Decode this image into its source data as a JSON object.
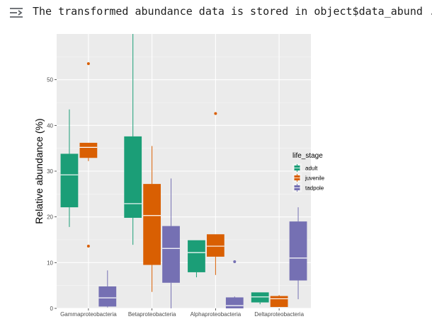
{
  "output": {
    "icon": "output-toggle-icon",
    "message": "The transformed abundance data is stored in object$data_abund ..."
  },
  "chart_data": {
    "type": "box",
    "title": "",
    "xlabel": "",
    "ylabel": "Relative abundance (%)",
    "ylim": [
      0,
      60
    ],
    "yticks": [
      0,
      10,
      20,
      30,
      40,
      50
    ],
    "grid": true,
    "legend": {
      "title": "life_stage",
      "position": "right"
    },
    "categories": [
      "Gammaproteobacteria",
      "Betaproteobacteria",
      "Alphaproteobacteria",
      "Deltaproteobacteria"
    ],
    "series": [
      {
        "name": "adult",
        "color": "#1b9e77",
        "boxes": [
          {
            "lower": 17.8,
            "q1": 22.1,
            "median": 29.2,
            "q3": 33.8,
            "upper": 43.5,
            "outliers": []
          },
          {
            "lower": 13.9,
            "q1": 19.8,
            "median": 22.9,
            "q3": 37.6,
            "upper": 60.0,
            "outliers": []
          },
          {
            "lower": 6.8,
            "q1": 7.9,
            "median": 12.2,
            "q3": 14.9,
            "upper": 14.9,
            "outliers": []
          },
          {
            "lower": 0.9,
            "q1": 1.3,
            "median": 2.5,
            "q3": 3.5,
            "upper": 3.5,
            "outliers": []
          }
        ]
      },
      {
        "name": "juvenile",
        "color": "#d95f02",
        "boxes": [
          {
            "lower": 32.2,
            "q1": 32.9,
            "median": 35.2,
            "q3": 36.2,
            "upper": 36.2,
            "outliers": [
              53.5,
              13.6
            ]
          },
          {
            "lower": 3.6,
            "q1": 9.5,
            "median": 20.3,
            "q3": 27.2,
            "upper": 35.5,
            "outliers": []
          },
          {
            "lower": 7.3,
            "q1": 11.3,
            "median": 13.6,
            "q3": 16.2,
            "upper": 16.2,
            "outliers": [
              42.6
            ]
          },
          {
            "lower": 0.3,
            "q1": 0.3,
            "median": 2.1,
            "q3": 2.7,
            "upper": 2.9,
            "outliers": []
          }
        ]
      },
      {
        "name": "tadpole",
        "color": "#7570b3",
        "boxes": [
          {
            "lower": 0.2,
            "q1": 0.4,
            "median": 2.3,
            "q3": 4.8,
            "upper": 8.3,
            "outliers": []
          },
          {
            "lower": 0.0,
            "q1": 5.6,
            "median": 13.1,
            "q3": 18.0,
            "upper": 28.4,
            "outliers": []
          },
          {
            "lower": 0.0,
            "q1": 0.0,
            "median": 0.6,
            "q3": 2.4,
            "upper": 2.6,
            "outliers": [
              10.2
            ]
          },
          {
            "lower": 2.0,
            "q1": 6.1,
            "median": 11.0,
            "q3": 19.0,
            "upper": 22.1,
            "outliers": []
          }
        ]
      }
    ]
  }
}
